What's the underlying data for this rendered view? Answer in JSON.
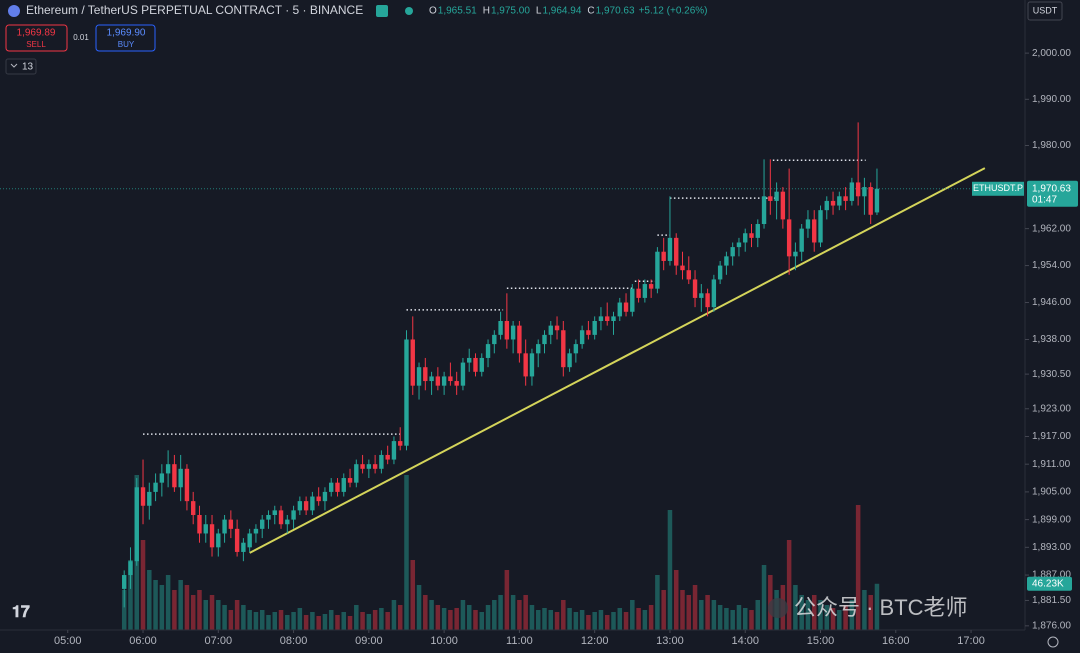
{
  "header": {
    "symbol": "Ethereum / TetherUS PERPETUAL CONTRACT · 5 · BINANCE",
    "ohlc": [
      {
        "label": "O",
        "value": "1,965.51"
      },
      {
        "label": "H",
        "value": "1,975.00"
      },
      {
        "label": "L",
        "value": "1,964.94"
      },
      {
        "label": "C",
        "value": "1,970.63"
      }
    ],
    "change": "+5.12 (+0.26%)",
    "sell_price": "1,969.89",
    "sell_label": "SELL",
    "spread": "0.01",
    "buy_price": "1,969.90",
    "buy_label": "BUY",
    "indicators_count": "13",
    "currency": "USDT",
    "watermark": "公众号 · BTC老师"
  },
  "chart_data": {
    "type": "candlestick",
    "up_color": "#26a69a",
    "down_color": "#f23645",
    "trend_color": "#d4d45a",
    "xlim": [
      246,
      1063
    ],
    "xticks": [
      {
        "value": 300,
        "label": "05:00"
      },
      {
        "value": 360,
        "label": "06:00"
      },
      {
        "value": 420,
        "label": "07:00"
      },
      {
        "value": 480,
        "label": "08:00"
      },
      {
        "value": 540,
        "label": "09:00"
      },
      {
        "value": 600,
        "label": "10:00"
      },
      {
        "value": 660,
        "label": "11:00"
      },
      {
        "value": 720,
        "label": "12:00"
      },
      {
        "value": 780,
        "label": "13:00"
      },
      {
        "value": 840,
        "label": "14:00"
      },
      {
        "value": 900,
        "label": "15:00"
      },
      {
        "value": 960,
        "label": "16:00"
      },
      {
        "value": 1020,
        "label": "17:00"
      }
    ],
    "ylim": [
      1875.1,
      2011.5
    ],
    "yticks": [
      {
        "value": 2000,
        "label": "2,000.00"
      },
      {
        "value": 1990,
        "label": "1,990.00"
      },
      {
        "value": 1980,
        "label": "1,980.00"
      },
      {
        "value": 1962,
        "label": "1,962.00"
      },
      {
        "value": 1954,
        "label": "1,954.00"
      },
      {
        "value": 1946,
        "label": "1,946.00"
      },
      {
        "value": 1938,
        "label": "1,938.00"
      },
      {
        "value": 1930.5,
        "label": "1,930.50"
      },
      {
        "value": 1923,
        "label": "1,923.00"
      },
      {
        "value": 1917,
        "label": "1,917.00"
      },
      {
        "value": 1911,
        "label": "1,911.00"
      },
      {
        "value": 1905,
        "label": "1,905.00"
      },
      {
        "value": 1899,
        "label": "1,899.00"
      },
      {
        "value": 1893,
        "label": "1,893.00"
      },
      {
        "value": 1887,
        "label": "1,887.00"
      },
      {
        "value": 1881.5,
        "label": "1,881.50"
      },
      {
        "value": 1876,
        "label": "1,876.00"
      }
    ],
    "vlim": [
      0,
      630
    ],
    "candles": [
      [
        345,
        1884,
        1888,
        1880,
        1887,
        40
      ],
      [
        350,
        1887,
        1893,
        1884,
        1890,
        70
      ],
      [
        355,
        1890,
        1908,
        1889,
        1906,
        155
      ],
      [
        360,
        1906,
        1912,
        1898,
        1902,
        90
      ],
      [
        365,
        1902,
        1907,
        1899,
        1905,
        60
      ],
      [
        370,
        1905,
        1909,
        1903,
        1907,
        50
      ],
      [
        375,
        1907,
        1911,
        1904,
        1909,
        45
      ],
      [
        380,
        1909,
        1914,
        1906,
        1911,
        55
      ],
      [
        385,
        1911,
        1913,
        1905,
        1906,
        40
      ],
      [
        390,
        1906,
        1913,
        1903,
        1910,
        50
      ],
      [
        395,
        1910,
        1911,
        1901,
        1903,
        45
      ],
      [
        400,
        1903,
        1905,
        1898,
        1900,
        35
      ],
      [
        405,
        1900,
        1902,
        1894,
        1896,
        40
      ],
      [
        410,
        1896,
        1900,
        1894,
        1898,
        30
      ],
      [
        415,
        1898,
        1900,
        1891,
        1893,
        35
      ],
      [
        420,
        1893,
        1897,
        1891,
        1896,
        30
      ],
      [
        425,
        1896,
        1900,
        1894,
        1899,
        25
      ],
      [
        430,
        1899,
        1901,
        1895,
        1897,
        20
      ],
      [
        435,
        1897,
        1899,
        1891,
        1892,
        30
      ],
      [
        440,
        1892,
        1895,
        1890,
        1894,
        25
      ],
      [
        445,
        1893,
        1897,
        1892,
        1896,
        20
      ],
      [
        450,
        1896,
        1898,
        1894,
        1897,
        18
      ],
      [
        455,
        1897,
        1900,
        1895,
        1899,
        20
      ],
      [
        460,
        1899,
        1901,
        1897,
        1900,
        15
      ],
      [
        465,
        1900,
        1902,
        1898,
        1901,
        18
      ],
      [
        470,
        1901,
        1902,
        1897,
        1898,
        20
      ],
      [
        475,
        1898,
        1900,
        1896,
        1899,
        15
      ],
      [
        480,
        1899,
        1902,
        1897,
        1901,
        18
      ],
      [
        485,
        1901,
        1904,
        1900,
        1903,
        22
      ],
      [
        490,
        1903,
        1904,
        1900,
        1901,
        15
      ],
      [
        495,
        1901,
        1905,
        1900,
        1904,
        18
      ],
      [
        500,
        1904,
        1906,
        1902,
        1903,
        14
      ],
      [
        505,
        1903,
        1906,
        1901,
        1905,
        16
      ],
      [
        510,
        1905,
        1908,
        1904,
        1907,
        20
      ],
      [
        515,
        1907,
        1908,
        1904,
        1905,
        15
      ],
      [
        520,
        1905,
        1909,
        1904,
        1908,
        18
      ],
      [
        525,
        1908,
        1910,
        1906,
        1907,
        14
      ],
      [
        530,
        1907,
        1912,
        1906,
        1911,
        25
      ],
      [
        535,
        1911,
        1913,
        1909,
        1910,
        18
      ],
      [
        540,
        1910,
        1912,
        1908,
        1911,
        16
      ],
      [
        545,
        1911,
        1913,
        1909,
        1910,
        20
      ],
      [
        550,
        1910,
        1914,
        1909,
        1913,
        22
      ],
      [
        555,
        1913,
        1915,
        1911,
        1912,
        18
      ],
      [
        560,
        1912,
        1917,
        1911,
        1916,
        30
      ],
      [
        565,
        1916,
        1919,
        1914,
        1915,
        25
      ],
      [
        570,
        1915,
        1940,
        1914,
        1938,
        155
      ],
      [
        575,
        1938,
        1943,
        1926,
        1928,
        70
      ],
      [
        580,
        1928,
        1933,
        1925,
        1932,
        45
      ],
      [
        585,
        1932,
        1934,
        1927,
        1929,
        35
      ],
      [
        590,
        1929,
        1931,
        1926,
        1930,
        30
      ],
      [
        595,
        1930,
        1932,
        1927,
        1928,
        25
      ],
      [
        600,
        1928,
        1931,
        1926,
        1930,
        22
      ],
      [
        605,
        1930,
        1933,
        1928,
        1929,
        20
      ],
      [
        610,
        1929,
        1931,
        1926,
        1928,
        22
      ],
      [
        615,
        1928,
        1934,
        1927,
        1933,
        30
      ],
      [
        620,
        1933,
        1936,
        1931,
        1934,
        25
      ],
      [
        625,
        1934,
        1935,
        1930,
        1931,
        20
      ],
      [
        630,
        1931,
        1935,
        1930,
        1934,
        18
      ],
      [
        635,
        1934,
        1938,
        1932,
        1937,
        25
      ],
      [
        640,
        1937,
        1940,
        1935,
        1939,
        30
      ],
      [
        645,
        1939,
        1944,
        1938,
        1942,
        35
      ],
      [
        650,
        1942,
        1948,
        1936,
        1938,
        60
      ],
      [
        655,
        1938,
        1942,
        1935,
        1941,
        35
      ],
      [
        660,
        1941,
        1942,
        1933,
        1935,
        30
      ],
      [
        665,
        1935,
        1938,
        1928,
        1930,
        35
      ],
      [
        670,
        1930,
        1936,
        1928,
        1935,
        25
      ],
      [
        675,
        1935,
        1938,
        1932,
        1937,
        20
      ],
      [
        680,
        1937,
        1940,
        1935,
        1939,
        22
      ],
      [
        685,
        1939,
        1942,
        1937,
        1941,
        20
      ],
      [
        690,
        1941,
        1943,
        1938,
        1940,
        18
      ],
      [
        695,
        1940,
        1942,
        1930,
        1932,
        30
      ],
      [
        700,
        1932,
        1936,
        1931,
        1935,
        22
      ],
      [
        705,
        1935,
        1938,
        1933,
        1937,
        18
      ],
      [
        710,
        1937,
        1941,
        1936,
        1940,
        20
      ],
      [
        715,
        1940,
        1942,
        1938,
        1939,
        15
      ],
      [
        720,
        1939,
        1943,
        1938,
        1942,
        18
      ],
      [
        725,
        1942,
        1945,
        1940,
        1943,
        20
      ],
      [
        730,
        1943,
        1946,
        1941,
        1942,
        15
      ],
      [
        735,
        1942,
        1944,
        1939,
        1943,
        18
      ],
      [
        740,
        1943,
        1947,
        1942,
        1946,
        22
      ],
      [
        745,
        1946,
        1948,
        1943,
        1944,
        18
      ],
      [
        750,
        1944,
        1950,
        1943,
        1949,
        30
      ],
      [
        755,
        1949,
        1951,
        1946,
        1947,
        22
      ],
      [
        760,
        1947,
        1951,
        1946,
        1950,
        20
      ],
      [
        765,
        1950,
        1951,
        1947,
        1949,
        25
      ],
      [
        770,
        1949,
        1958,
        1948,
        1957,
        55
      ],
      [
        775,
        1957,
        1960,
        1953,
        1955,
        40
      ],
      [
        780,
        1955,
        1969,
        1954,
        1960,
        120
      ],
      [
        785,
        1960,
        1961,
        1952,
        1954,
        60
      ],
      [
        790,
        1954,
        1957,
        1951,
        1953,
        40
      ],
      [
        795,
        1953,
        1956,
        1950,
        1951,
        35
      ],
      [
        800,
        1951,
        1953,
        1945,
        1947,
        45
      ],
      [
        805,
        1947,
        1950,
        1944,
        1948,
        30
      ],
      [
        810,
        1948,
        1949,
        1943,
        1945,
        35
      ],
      [
        815,
        1945,
        1952,
        1944,
        1951,
        30
      ],
      [
        820,
        1951,
        1955,
        1950,
        1954,
        25
      ],
      [
        825,
        1954,
        1957,
        1952,
        1956,
        22
      ],
      [
        830,
        1956,
        1959,
        1954,
        1958,
        20
      ],
      [
        835,
        1958,
        1960,
        1956,
        1959,
        25
      ],
      [
        840,
        1959,
        1962,
        1957,
        1961,
        22
      ],
      [
        845,
        1961,
        1963,
        1958,
        1960,
        20
      ],
      [
        850,
        1960,
        1964,
        1958,
        1963,
        30
      ],
      [
        855,
        1963,
        1977,
        1962,
        1969,
        65
      ],
      [
        860,
        1969,
        1977,
        1965,
        1968,
        55
      ],
      [
        865,
        1968,
        1972,
        1964,
        1970,
        40
      ],
      [
        870,
        1970,
        1971,
        1962,
        1964,
        45
      ],
      [
        875,
        1964,
        1975,
        1952,
        1956,
        90
      ],
      [
        880,
        1956,
        1959,
        1953,
        1957,
        45
      ],
      [
        885,
        1957,
        1963,
        1955,
        1962,
        35
      ],
      [
        890,
        1962,
        1966,
        1960,
        1964,
        30
      ],
      [
        895,
        1964,
        1966,
        1957,
        1959,
        35
      ],
      [
        900,
        1959,
        1967,
        1958,
        1966,
        30
      ],
      [
        905,
        1966,
        1969,
        1964,
        1968,
        25
      ],
      [
        910,
        1968,
        1970,
        1965,
        1967,
        22
      ],
      [
        915,
        1967,
        1970,
        1966,
        1969,
        20
      ],
      [
        920,
        1969,
        1971,
        1966,
        1968,
        25
      ],
      [
        925,
        1968,
        1973,
        1967,
        1972,
        30
      ],
      [
        930,
        1972,
        1985,
        1967,
        1969,
        125
      ],
      [
        935,
        1969,
        1973,
        1965,
        1971,
        40
      ],
      [
        940,
        1971,
        1972,
        1963,
        1965,
        35
      ],
      [
        945,
        1965.51,
        1975,
        1964.94,
        1970.63,
        46.23
      ]
    ],
    "levels": [
      [
        1917.5,
        360,
        567
      ],
      [
        1944.4,
        570,
        647
      ],
      [
        1949.1,
        650,
        750
      ],
      [
        1950.6,
        752,
        768
      ],
      [
        1960.6,
        770,
        780
      ],
      [
        1968.6,
        780,
        864
      ],
      [
        1976.8,
        862,
        936
      ]
    ],
    "trendline": [
      [
        445,
        1891.8
      ],
      [
        1031,
        1975.1
      ]
    ],
    "last_symbol": "ETHUSDT.P",
    "last_price": {
      "value": 1970.63,
      "label": "1,970.63"
    },
    "countdown": "01:47",
    "last_volume": {
      "value": 46.23,
      "label": "46.23K"
    }
  }
}
